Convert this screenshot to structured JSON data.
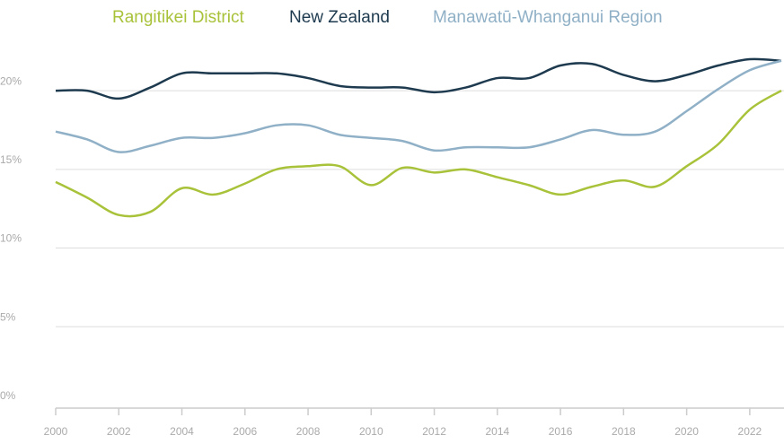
{
  "chart_data": {
    "type": "line",
    "x": [
      2000,
      2001,
      2002,
      2003,
      2004,
      2005,
      2006,
      2007,
      2008,
      2009,
      2010,
      2011,
      2012,
      2013,
      2014,
      2015,
      2016,
      2017,
      2018,
      2019,
      2020,
      2021,
      2022,
      2023
    ],
    "series": [
      {
        "name": "Rangitikei District",
        "color": "#a8c23a",
        "values": [
          14.2,
          13.2,
          12.1,
          12.3,
          13.8,
          13.4,
          14.1,
          15.0,
          15.2,
          15.2,
          14.0,
          15.1,
          14.8,
          15.0,
          14.5,
          14.0,
          13.4,
          13.9,
          14.3,
          13.9,
          15.2,
          16.6,
          18.8,
          20.0
        ]
      },
      {
        "name": "New Zealand",
        "color": "#1e3a4f",
        "values": [
          20.0,
          20.0,
          19.5,
          20.2,
          21.1,
          21.1,
          21.1,
          21.1,
          20.8,
          20.3,
          20.2,
          20.2,
          19.9,
          20.2,
          20.8,
          20.8,
          21.6,
          21.7,
          21.0,
          20.6,
          21.0,
          21.6,
          22.0,
          21.9
        ]
      },
      {
        "name": "Manawatū-Whanganui Region",
        "color": "#8fb0c6",
        "values": [
          17.4,
          16.9,
          16.1,
          16.5,
          17.0,
          17.0,
          17.3,
          17.8,
          17.8,
          17.2,
          17.0,
          16.8,
          16.2,
          16.4,
          16.4,
          16.4,
          16.9,
          17.5,
          17.2,
          17.4,
          18.7,
          20.1,
          21.3,
          21.9
        ]
      }
    ],
    "xlim": [
      2000,
      2023
    ],
    "xticks": [
      2000,
      2002,
      2004,
      2006,
      2008,
      2010,
      2012,
      2014,
      2016,
      2018,
      2020,
      2022
    ],
    "ylim": [
      0,
      22
    ],
    "yticks": [
      {
        "value": 0,
        "label": "0%"
      },
      {
        "value": 5,
        "label": "5%"
      },
      {
        "value": 10,
        "label": "10%"
      },
      {
        "value": 15,
        "label": "15%"
      },
      {
        "value": 20,
        "label": "20%"
      }
    ],
    "grid": true,
    "legend": "top"
  }
}
